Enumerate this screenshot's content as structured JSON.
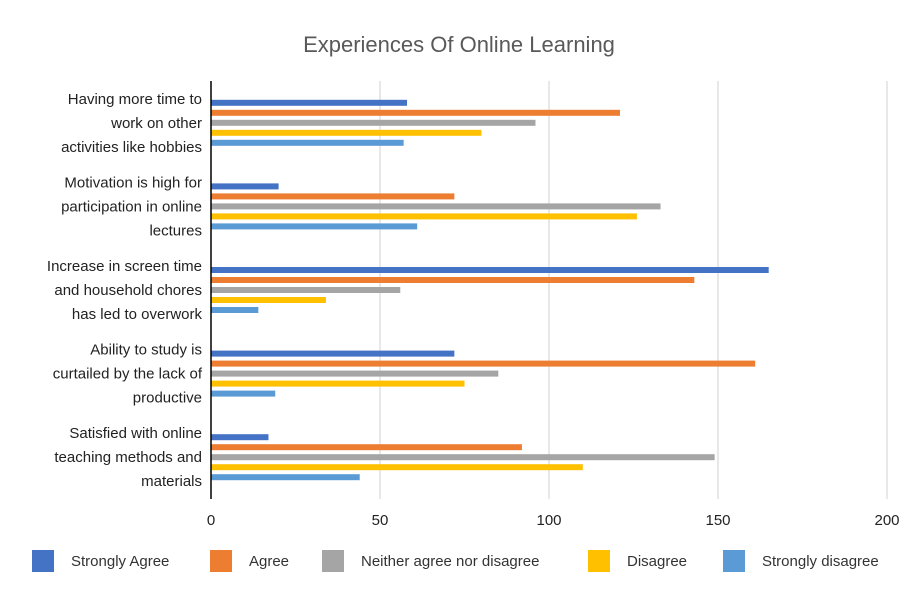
{
  "chart_data": {
    "type": "bar",
    "orientation": "horizontal",
    "title": "Experiences Of Online Learning",
    "categories": [
      [
        "Having more time to",
        "work on other",
        "activities like hobbies"
      ],
      [
        "Motivation is high for",
        "participation in online",
        "lectures"
      ],
      [
        "Increase in screen time",
        "and household chores",
        "has led to overwork"
      ],
      [
        "Ability to study is",
        "curtailed by the lack of",
        "productive"
      ],
      [
        "Satisfied with online",
        "teaching methods and",
        "materials"
      ]
    ],
    "series": [
      {
        "name": "Strongly Agree",
        "color": "#4472C4",
        "values": [
          58,
          20,
          165,
          72,
          17
        ]
      },
      {
        "name": "Agree",
        "color": "#ED7D31",
        "values": [
          121,
          72,
          143,
          161,
          92
        ]
      },
      {
        "name": "Neither agree nor disagree",
        "color": "#A5A5A5",
        "values": [
          96,
          133,
          56,
          85,
          149
        ]
      },
      {
        "name": "Disagree",
        "color": "#FFC000",
        "values": [
          80,
          126,
          34,
          75,
          110
        ]
      },
      {
        "name": "Strongly disagree",
        "color": "#5B9BD5",
        "values": [
          57,
          61,
          14,
          19,
          44
        ]
      }
    ],
    "xlim": [
      0,
      200
    ],
    "xticks": [
      0,
      50,
      100,
      150,
      200
    ],
    "grid": true,
    "legend_position": "bottom"
  }
}
